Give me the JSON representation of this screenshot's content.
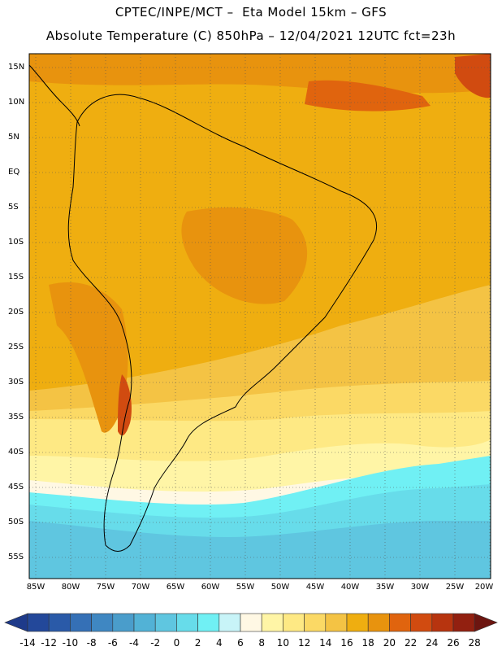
{
  "header": {
    "line1": "CPTEC/INPE/MCT –  Eta Model 15km – GFS",
    "line2": "Absolute Temperature (C) 850hPa – 12/04/2021 12UTC fct=23h"
  },
  "map": {
    "lat_labels": [
      "15N",
      "10N",
      "5N",
      "EQ",
      "5S",
      "10S",
      "15S",
      "20S",
      "25S",
      "30S",
      "35S",
      "40S",
      "45S",
      "50S",
      "55S"
    ],
    "lon_labels": [
      "85W",
      "80W",
      "75W",
      "70W",
      "65W",
      "60W",
      "55W",
      "50W",
      "45W",
      "40W",
      "35W",
      "30W",
      "25W",
      "20W"
    ],
    "lat_range": [
      17.5,
      -57.5
    ],
    "lon_range": [
      -86,
      -20
    ],
    "grid": "dotted"
  },
  "colorbar": {
    "labels": [
      "-14",
      "-12",
      "-10",
      "-8",
      "-6",
      "-4",
      "-2",
      "0",
      "2",
      "4",
      "6",
      "8",
      "10",
      "12",
      "14",
      "16",
      "18",
      "20",
      "22",
      "24",
      "26",
      "28"
    ],
    "colors": [
      "#1e3a8a",
      "#23489a",
      "#2a5aa8",
      "#3570b6",
      "#3f87c2",
      "#4a9dcb",
      "#52b2d6",
      "#5fc6e0",
      "#67dcea",
      "#70f0f4",
      "#c8f4f8",
      "#fff8e4",
      "#fff5a6",
      "#fee984",
      "#fbd965",
      "#f4c344",
      "#efae10",
      "#e8930e",
      "#e0640e",
      "#d14b10",
      "#b7340f",
      "#922010",
      "#6c1510"
    ]
  }
}
